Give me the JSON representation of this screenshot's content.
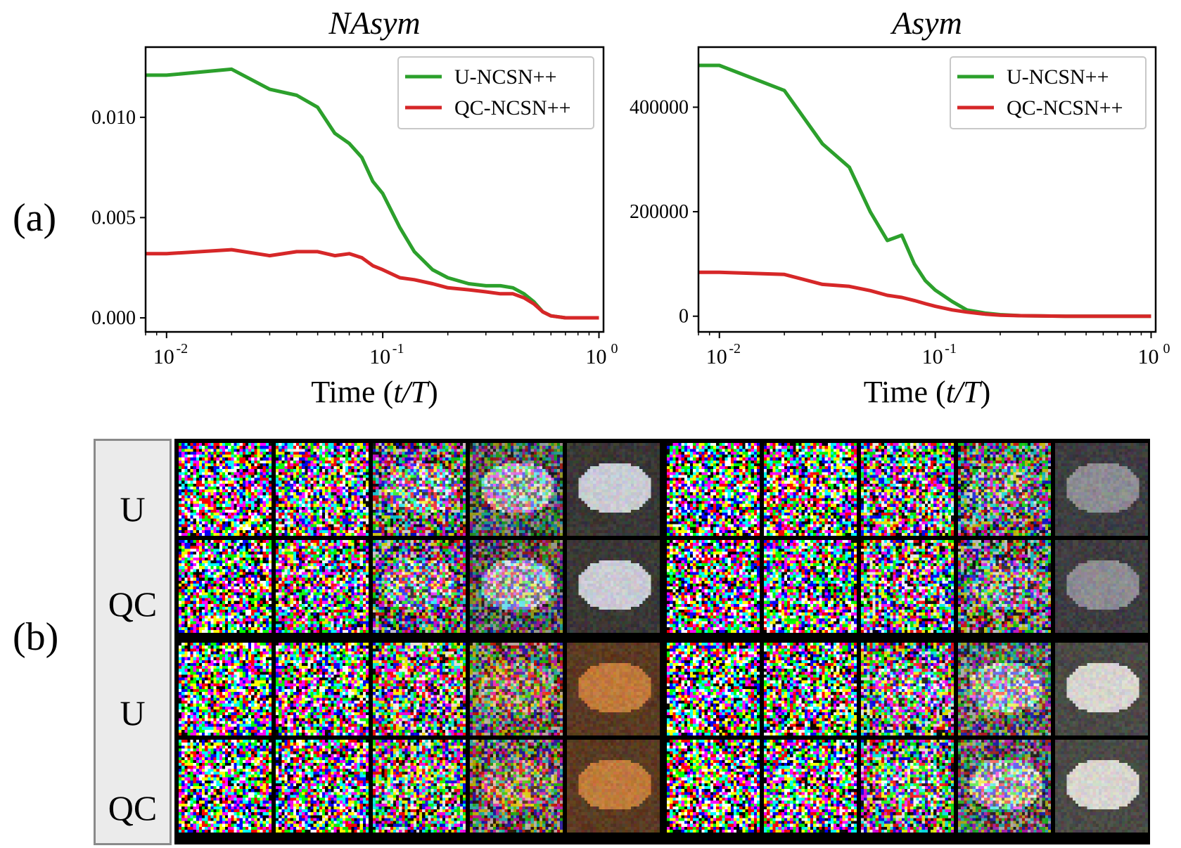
{
  "panel_labels": {
    "a": "(a)",
    "b": "(b)"
  },
  "chart_data": [
    {
      "type": "line",
      "title": "NAsym",
      "xlabel_text": "Time (",
      "xlabel_italic": "t/T",
      "xlabel_close": ")",
      "xscale": "log",
      "xlim": [
        0.008,
        1.05
      ],
      "ylim": [
        -0.0007,
        0.0135
      ],
      "yticks": [
        0.0,
        0.005,
        0.01
      ],
      "ytick_labels": [
        "0.000",
        "0.005",
        "0.010"
      ],
      "xticks": [
        0.01,
        0.1,
        1.0
      ],
      "xtick_labels": [
        [
          "10",
          "-2"
        ],
        [
          "10",
          "-1"
        ],
        [
          "10",
          "0"
        ]
      ],
      "legend_position": "top-right",
      "series": [
        {
          "name": "U-NCSN++",
          "color": "#2ca02c",
          "x": [
            0.008,
            0.01,
            0.02,
            0.03,
            0.04,
            0.05,
            0.06,
            0.07,
            0.08,
            0.09,
            0.1,
            0.12,
            0.14,
            0.17,
            0.2,
            0.25,
            0.3,
            0.35,
            0.4,
            0.45,
            0.5,
            0.55,
            0.6,
            0.7,
            0.8,
            1.0
          ],
          "y": [
            0.0121,
            0.0121,
            0.0124,
            0.0114,
            0.0111,
            0.0105,
            0.0092,
            0.0087,
            0.008,
            0.0068,
            0.0062,
            0.0045,
            0.0033,
            0.0024,
            0.002,
            0.0017,
            0.0016,
            0.0016,
            0.0015,
            0.0012,
            0.0008,
            0.0003,
            0.0001,
            0.0,
            0.0,
            0.0
          ]
        },
        {
          "name": "QC-NCSN++",
          "color": "#d62728",
          "x": [
            0.008,
            0.01,
            0.02,
            0.03,
            0.04,
            0.05,
            0.06,
            0.07,
            0.08,
            0.09,
            0.1,
            0.12,
            0.14,
            0.17,
            0.2,
            0.25,
            0.3,
            0.35,
            0.4,
            0.45,
            0.5,
            0.55,
            0.6,
            0.7,
            0.8,
            1.0
          ],
          "y": [
            0.0032,
            0.0032,
            0.0034,
            0.0031,
            0.0033,
            0.0033,
            0.0031,
            0.0032,
            0.003,
            0.0026,
            0.0024,
            0.002,
            0.0019,
            0.0017,
            0.0015,
            0.0014,
            0.0013,
            0.0012,
            0.0012,
            0.001,
            0.0007,
            0.0003,
            0.0001,
            0.0,
            0.0,
            0.0
          ]
        }
      ]
    },
    {
      "type": "line",
      "title": "Asym",
      "xlabel_text": "Time (",
      "xlabel_italic": "t/T",
      "xlabel_close": ")",
      "xscale": "log",
      "xlim": [
        0.008,
        1.05
      ],
      "ylim": [
        -30000,
        515000
      ],
      "yticks": [
        0,
        200000,
        400000
      ],
      "ytick_labels": [
        "0",
        "200000",
        "400000"
      ],
      "xticks": [
        0.01,
        0.1,
        1.0
      ],
      "xtick_labels": [
        [
          "10",
          "-2"
        ],
        [
          "10",
          "-1"
        ],
        [
          "10",
          "0"
        ]
      ],
      "legend_position": "top-right",
      "series": [
        {
          "name": "U-NCSN++",
          "color": "#2ca02c",
          "x": [
            0.008,
            0.01,
            0.02,
            0.03,
            0.04,
            0.05,
            0.06,
            0.07,
            0.08,
            0.09,
            0.1,
            0.12,
            0.14,
            0.17,
            0.2,
            0.25,
            0.3,
            0.4,
            0.6,
            1.0
          ],
          "y": [
            480000,
            480000,
            432000,
            330000,
            285000,
            200000,
            145000,
            155000,
            100000,
            68000,
            50000,
            28000,
            12000,
            6000,
            3000,
            1000,
            500,
            0,
            0,
            0
          ]
        },
        {
          "name": "QC-NCSN++",
          "color": "#d62728",
          "x": [
            0.008,
            0.01,
            0.02,
            0.03,
            0.04,
            0.05,
            0.06,
            0.07,
            0.08,
            0.09,
            0.1,
            0.12,
            0.14,
            0.17,
            0.2,
            0.25,
            0.3,
            0.4,
            0.6,
            1.0
          ],
          "y": [
            84000,
            84000,
            80000,
            61000,
            57000,
            49000,
            40000,
            36000,
            30000,
            24000,
            19000,
            12000,
            8000,
            4000,
            2000,
            1000,
            500,
            0,
            0,
            0
          ]
        }
      ]
    }
  ],
  "image_grid": {
    "row_labels": [
      "U",
      "QC",
      "U",
      "QC"
    ],
    "blocks": [
      {
        "name": "car",
        "clean_color": "#c9cbd3",
        "shadow_color": "#3a3836",
        "denoise_levels": [
          0.0,
          0.08,
          0.3,
          0.55,
          1.0
        ]
      },
      {
        "name": "horse-dark",
        "clean_color": "#8c8c92",
        "shadow_color": "#3e3d40",
        "denoise_levels": [
          0.0,
          0.04,
          0.12,
          0.35,
          1.0
        ]
      },
      {
        "name": "orange-object",
        "clean_color": "#c07a3c",
        "shadow_color": "#5b3a22",
        "denoise_levels": [
          0.0,
          0.05,
          0.15,
          0.45,
          1.0
        ]
      },
      {
        "name": "horse-white",
        "clean_color": "#d6d4cf",
        "shadow_color": "#4a4a46",
        "denoise_levels": [
          0.0,
          0.06,
          0.2,
          0.5,
          1.0
        ]
      }
    ]
  }
}
